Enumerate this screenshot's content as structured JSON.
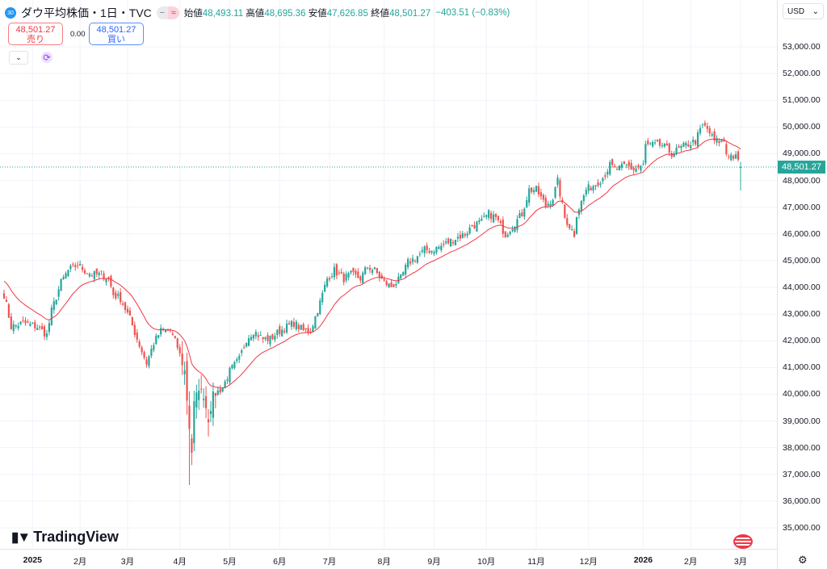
{
  "header": {
    "symbol_badge": "30",
    "title": "ダウ平均株価・1日・TVC",
    "pill_left": "−",
    "pill_right": "≈",
    "open_label": "始値",
    "open": "48,493.11",
    "high_label": "高値",
    "high": "48,695.36",
    "low_label": "安値",
    "low": "47,626.85",
    "close_label": "終値",
    "close": "48,501.27",
    "change": "−403.51 (−0.83%)"
  },
  "trade": {
    "sell_price": "48,501.27",
    "sell_label": "売り",
    "spread": "0.00",
    "buy_price": "48,501.27",
    "buy_label": "買い"
  },
  "controls": {
    "collapse": "⌄",
    "refresh": "⟳"
  },
  "axis": {
    "currency": "USD",
    "currency_chevron": "⌄",
    "current_price": "48,501.27",
    "settings_icon": "⚙"
  },
  "logo": {
    "text": "TradingView"
  },
  "colors": {
    "up": "#26a69a",
    "down": "#ef5350",
    "ma": "#f23645",
    "grid": "#f0f3fa"
  },
  "chart_data": {
    "type": "candlestick",
    "title": "ダウ平均株価・1日・TVC",
    "ylim": [
      34500,
      53800
    ],
    "y_ticks": [
      {
        "v": 53000,
        "t": "53,000.00"
      },
      {
        "v": 52000,
        "t": "52,000.00"
      },
      {
        "v": 51000,
        "t": "51,000.00"
      },
      {
        "v": 50000,
        "t": "50,000.00"
      },
      {
        "v": 49000,
        "t": "49,000.00"
      },
      {
        "v": 48000,
        "t": "48,000.00"
      },
      {
        "v": 47000,
        "t": "47,000.00"
      },
      {
        "v": 46000,
        "t": "46,000.00"
      },
      {
        "v": 45000,
        "t": "45,000.00"
      },
      {
        "v": 44000,
        "t": "44,000.00"
      },
      {
        "v": 43000,
        "t": "43,000.00"
      },
      {
        "v": 42000,
        "t": "42,000.00"
      },
      {
        "v": 41000,
        "t": "41,000.00"
      },
      {
        "v": 40000,
        "t": "40,000.00"
      },
      {
        "v": 39000,
        "t": "39,000.00"
      },
      {
        "v": 38000,
        "t": "38,000.00"
      },
      {
        "v": 37000,
        "t": "37,000.00"
      },
      {
        "v": 36000,
        "t": "36,000.00"
      },
      {
        "v": 35000,
        "t": "35,000.00"
      }
    ],
    "x_ticks": [
      {
        "d": 12,
        "t": "2025",
        "bold": true
      },
      {
        "d": 32,
        "t": "2月"
      },
      {
        "d": 52,
        "t": "3月"
      },
      {
        "d": 74,
        "t": "4月"
      },
      {
        "d": 95,
        "t": "5月"
      },
      {
        "d": 116,
        "t": "6月"
      },
      {
        "d": 137,
        "t": "7月"
      },
      {
        "d": 160,
        "t": "8月"
      },
      {
        "d": 181,
        "t": "9月"
      },
      {
        "d": 203,
        "t": "10月"
      },
      {
        "d": 224,
        "t": "11月"
      },
      {
        "d": 246,
        "t": "12月"
      },
      {
        "d": 269,
        "t": "2026",
        "bold": true
      },
      {
        "d": 289,
        "t": "2月"
      },
      {
        "d": 310,
        "t": "3月"
      }
    ],
    "total_days": 311,
    "close_keypoints": [
      [
        0,
        43730
      ],
      [
        3,
        42520
      ],
      [
        8,
        42670
      ],
      [
        14,
        42520
      ],
      [
        18,
        42220
      ],
      [
        20,
        43120
      ],
      [
        24,
        44180
      ],
      [
        27,
        44630
      ],
      [
        31,
        44850
      ],
      [
        34,
        44630
      ],
      [
        37,
        44480
      ],
      [
        41,
        44480
      ],
      [
        44,
        44330
      ],
      [
        46,
        43730
      ],
      [
        49,
        43580
      ],
      [
        53,
        42820
      ],
      [
        56,
        42070
      ],
      [
        60,
        41160
      ],
      [
        63,
        41920
      ],
      [
        66,
        42370
      ],
      [
        70,
        42370
      ],
      [
        73,
        41770
      ],
      [
        76,
        40860
      ],
      [
        78,
        38750
      ],
      [
        79,
        37840
      ],
      [
        80,
        39650
      ],
      [
        82,
        40250
      ],
      [
        84,
        39950
      ],
      [
        86,
        39050
      ],
      [
        88,
        39950
      ],
      [
        92,
        40250
      ],
      [
        95,
        40860
      ],
      [
        99,
        41310
      ],
      [
        102,
        42070
      ],
      [
        105,
        42370
      ],
      [
        109,
        42070
      ],
      [
        112,
        42070
      ],
      [
        116,
        42370
      ],
      [
        119,
        42520
      ],
      [
        122,
        42670
      ],
      [
        126,
        42370
      ],
      [
        129,
        42370
      ],
      [
        133,
        43430
      ],
      [
        136,
        44330
      ],
      [
        139,
        44630
      ],
      [
        143,
        44330
      ],
      [
        146,
        44480
      ],
      [
        150,
        44330
      ],
      [
        153,
        44780
      ],
      [
        156,
        44630
      ],
      [
        160,
        44180
      ],
      [
        163,
        44030
      ],
      [
        167,
        44330
      ],
      [
        170,
        44930
      ],
      [
        173,
        45090
      ],
      [
        177,
        45390
      ],
      [
        180,
        45390
      ],
      [
        184,
        45540
      ],
      [
        187,
        45690
      ],
      [
        190,
        45840
      ],
      [
        194,
        45990
      ],
      [
        197,
        46300
      ],
      [
        201,
        46450
      ],
      [
        204,
        46750
      ],
      [
        207,
        46600
      ],
      [
        211,
        45990
      ],
      [
        214,
        46300
      ],
      [
        218,
        46750
      ],
      [
        221,
        47650
      ],
      [
        224,
        47650
      ],
      [
        228,
        47050
      ],
      [
        231,
        47350
      ],
      [
        233,
        47960
      ],
      [
        236,
        46600
      ],
      [
        240,
        45990
      ],
      [
        241,
        46750
      ],
      [
        245,
        47650
      ],
      [
        248,
        47810
      ],
      [
        252,
        48110
      ],
      [
        255,
        48560
      ],
      [
        258,
        48410
      ],
      [
        262,
        48560
      ],
      [
        265,
        48410
      ],
      [
        269,
        48560
      ],
      [
        270,
        49320
      ],
      [
        274,
        49320
      ],
      [
        277,
        49320
      ],
      [
        281,
        49010
      ],
      [
        284,
        49160
      ],
      [
        287,
        49320
      ],
      [
        291,
        49470
      ],
      [
        294,
        50070
      ],
      [
        296,
        49920
      ],
      [
        299,
        49470
      ],
      [
        303,
        49470
      ],
      [
        304,
        49010
      ],
      [
        308,
        48860
      ],
      [
        310,
        48501.27
      ]
    ],
    "last_candle": {
      "open": 48493.11,
      "high": 48695.36,
      "low": 47626.85,
      "close": 48501.27
    },
    "ma_period": 20,
    "ma_start": 44300
  }
}
